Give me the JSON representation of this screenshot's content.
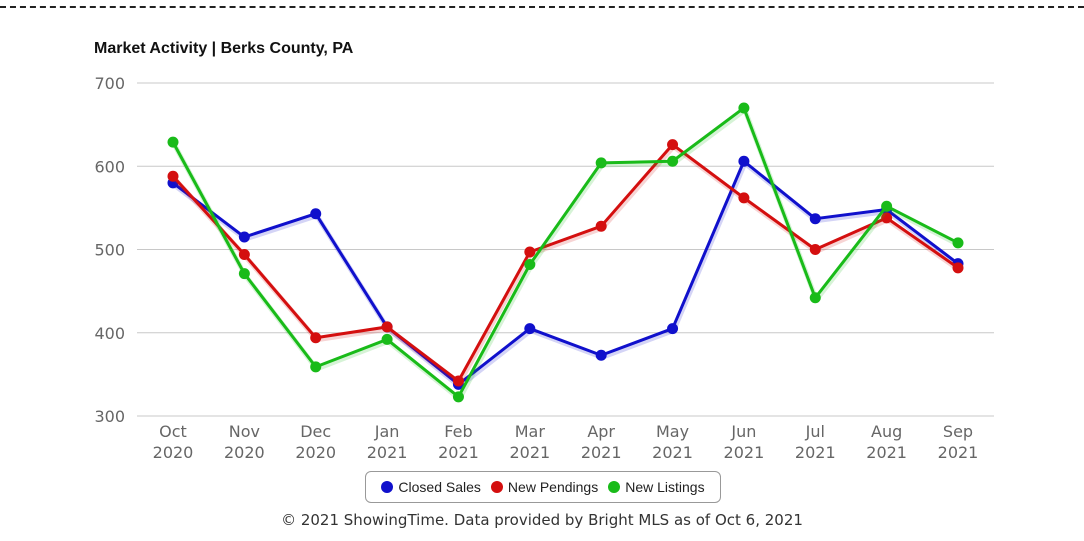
{
  "chart_data": {
    "type": "line",
    "title": "Market Activity | Berks County, PA",
    "xlabel": "",
    "ylabel": "",
    "ylim": [
      300,
      700
    ],
    "yticks": [
      "300",
      "400",
      "500",
      "600",
      "700"
    ],
    "categories": [
      [
        "Oct",
        "2020"
      ],
      [
        "Nov",
        "2020"
      ],
      [
        "Dec",
        "2020"
      ],
      [
        "Jan",
        "2021"
      ],
      [
        "Feb",
        "2021"
      ],
      [
        "Mar",
        "2021"
      ],
      [
        "Apr",
        "2021"
      ],
      [
        "May",
        "2021"
      ],
      [
        "Jun",
        "2021"
      ],
      [
        "Jul",
        "2021"
      ],
      [
        "Aug",
        "2021"
      ],
      [
        "Sep",
        "2021"
      ]
    ],
    "grid": true,
    "legend_position": "bottom",
    "series": [
      {
        "name": "Closed Sales",
        "color": "#1010cc",
        "values": [
          580,
          515,
          543,
          407,
          338,
          405,
          373,
          405,
          606,
          537,
          548,
          483
        ]
      },
      {
        "name": "New Pendings",
        "color": "#d40f0f",
        "values": [
          588,
          494,
          394,
          407,
          342,
          497,
          528,
          626,
          562,
          500,
          538,
          478
        ]
      },
      {
        "name": "New Listings",
        "color": "#19bb19",
        "values": [
          629,
          471,
          359,
          392,
          323,
          482,
          604,
          606,
          670,
          442,
          552,
          508
        ]
      }
    ]
  },
  "footer": "© 2021 ShowingTime. Data provided by Bright MLS as of Oct 6, 2021"
}
